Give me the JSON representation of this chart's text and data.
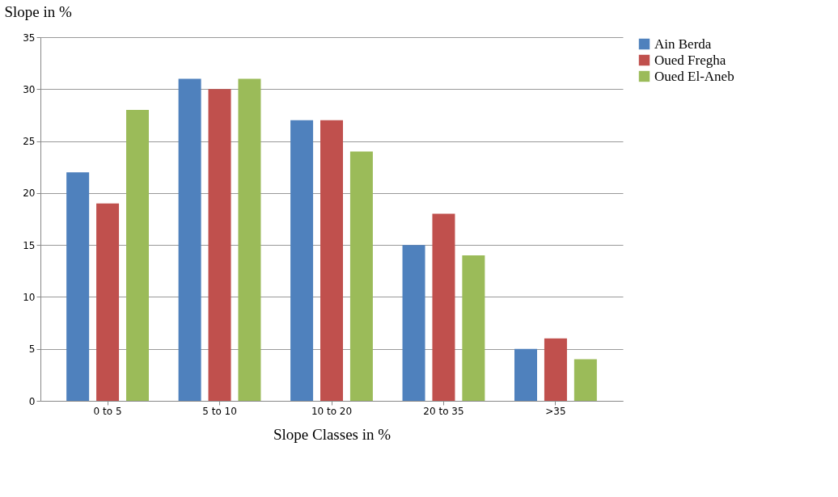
{
  "chart_data": {
    "type": "bar",
    "xlabel": "Slope Classes in %",
    "ylabel": "Slope in %",
    "categories": [
      "0 to 5",
      "5 to 10",
      "10 to 20",
      "20 to 35",
      ">35"
    ],
    "series": [
      {
        "name": "Ain Berda",
        "color": "#4f81bd",
        "values": [
          22,
          31,
          27,
          15,
          5
        ]
      },
      {
        "name": "Oued Fregha",
        "color": "#c0504d",
        "values": [
          19,
          30,
          27,
          18,
          6
        ]
      },
      {
        "name": "Oued El-Aneb",
        "color": "#9bbb59",
        "values": [
          28,
          31,
          24,
          14,
          4
        ]
      }
    ],
    "ylim": [
      0,
      35
    ],
    "yticks": [
      0,
      5,
      10,
      15,
      20,
      25,
      30,
      35
    ],
    "grid": "y",
    "legend": "right"
  }
}
